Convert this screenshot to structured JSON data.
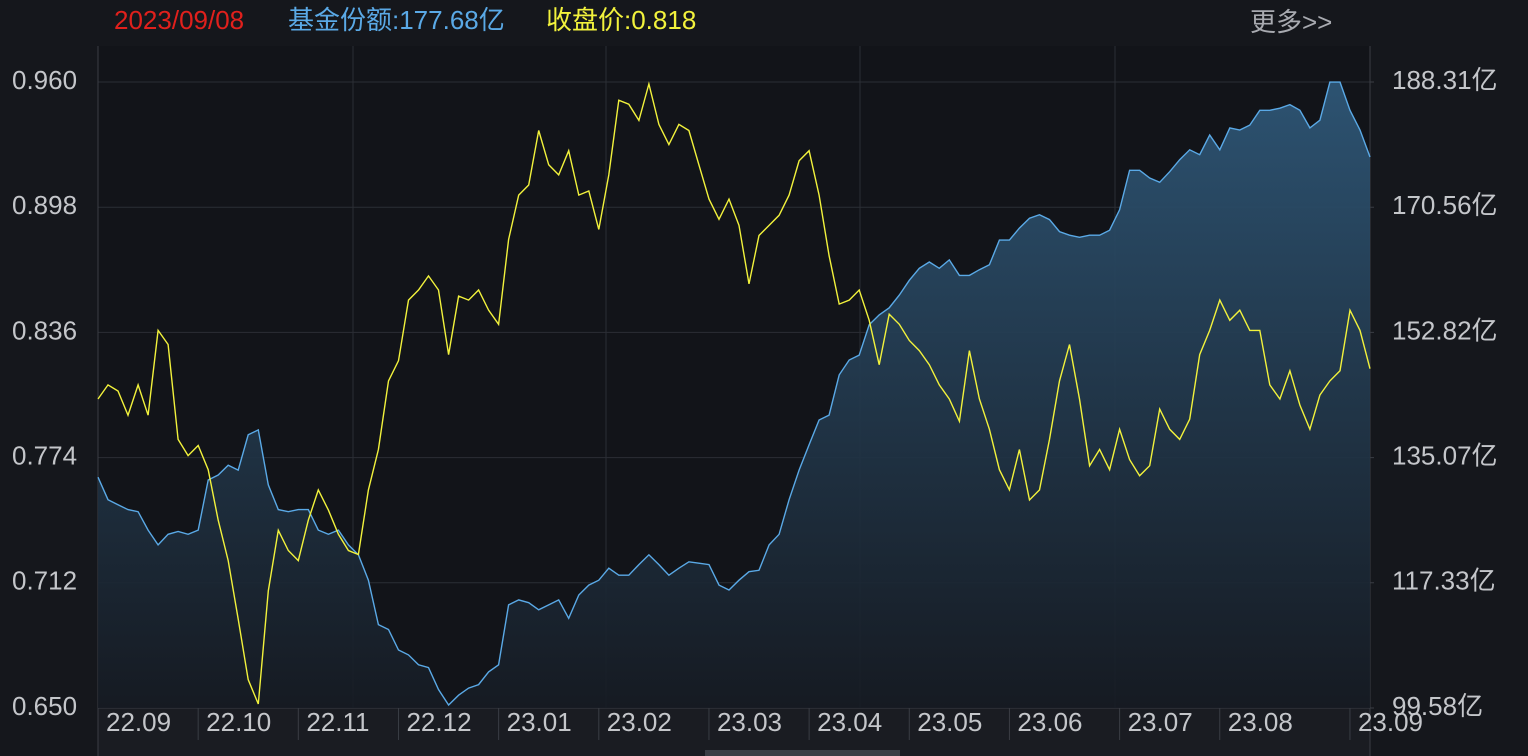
{
  "chart_data": {
    "type": "line",
    "date": "2023/09/08",
    "header_share": "基金份额:177.68亿",
    "header_price": "收盘价:0.818",
    "more": "更多>>",
    "categories": [
      "22.09",
      null,
      null,
      null,
      null,
      null,
      null,
      null,
      null,
      null,
      "22.10",
      null,
      null,
      null,
      null,
      null,
      null,
      null,
      null,
      null,
      "22.11",
      null,
      null,
      null,
      null,
      null,
      null,
      null,
      null,
      null,
      "22.12",
      null,
      null,
      null,
      null,
      null,
      null,
      null,
      null,
      null,
      "23.01",
      null,
      null,
      null,
      null,
      null,
      null,
      null,
      null,
      null,
      "23.02",
      null,
      null,
      null,
      null,
      null,
      null,
      null,
      null,
      null,
      null,
      "23.03",
      null,
      null,
      null,
      null,
      null,
      null,
      null,
      null,
      null,
      "23.04",
      null,
      null,
      null,
      null,
      null,
      null,
      null,
      null,
      null,
      "23.05",
      null,
      null,
      null,
      null,
      null,
      null,
      null,
      null,
      null,
      "23.06",
      null,
      null,
      null,
      null,
      null,
      null,
      null,
      null,
      null,
      null,
      "23.07",
      null,
      null,
      null,
      null,
      null,
      null,
      null,
      null,
      null,
      "23.08",
      null,
      null,
      null,
      null,
      null,
      null,
      null,
      null,
      null,
      null,
      null,
      null,
      "23.09",
      null,
      null
    ],
    "series": [
      {
        "color": "#5aa9e6",
        "axis": "y2",
        "fill": true,
        "values": [
          132.3,
          129.1,
          128.4,
          127.7,
          127.4,
          124.8,
          122.7,
          124.2,
          124.6,
          124.2,
          124.8,
          131.9,
          132.6,
          134.0,
          133.3,
          138.3,
          139.0,
          131.2,
          127.7,
          127.4,
          127.7,
          127.7,
          124.8,
          124.2,
          124.8,
          122.7,
          121.3,
          117.7,
          111.4,
          110.7,
          107.8,
          107.1,
          105.7,
          105.3,
          102.2,
          100.0,
          101.4,
          102.4,
          102.9,
          104.7,
          105.7,
          114.2,
          114.9,
          114.5,
          113.5,
          114.2,
          114.9,
          112.3,
          115.6,
          117.0,
          117.7,
          119.4,
          118.4,
          118.4,
          119.9,
          121.3,
          119.9,
          118.4,
          119.4,
          120.3,
          120.1,
          119.9,
          117.0,
          116.3,
          117.7,
          118.9,
          119.1,
          122.7,
          124.2,
          129.1,
          133.3,
          136.9,
          140.4,
          141.1,
          146.8,
          148.9,
          149.6,
          153.9,
          155.3,
          156.3,
          158.1,
          160.2,
          161.9,
          162.8,
          161.9,
          163.1,
          160.9,
          160.9,
          161.7,
          162.4,
          165.9,
          165.9,
          167.6,
          169.0,
          169.5,
          168.8,
          167.1,
          166.6,
          166.3,
          166.6,
          166.6,
          167.3,
          170.2,
          175.8,
          175.8,
          174.7,
          174.1,
          175.6,
          177.3,
          178.7,
          178.0,
          180.8,
          178.7,
          181.8,
          181.5,
          182.2,
          184.3,
          184.3,
          184.6,
          185.1,
          184.3,
          181.8,
          182.9,
          188.3,
          188.3,
          184.3,
          181.5,
          177.68
        ]
      },
      {
        "color": "#f2f23c",
        "axis": "y",
        "values": [
          0.803,
          0.81,
          0.807,
          0.795,
          0.81,
          0.795,
          0.837,
          0.83,
          0.783,
          0.775,
          0.78,
          0.768,
          0.743,
          0.723,
          0.694,
          0.664,
          0.652,
          0.708,
          0.738,
          0.728,
          0.723,
          0.743,
          0.758,
          0.748,
          0.736,
          0.728,
          0.726,
          0.758,
          0.778,
          0.812,
          0.822,
          0.852,
          0.857,
          0.864,
          0.857,
          0.825,
          0.854,
          0.852,
          0.857,
          0.847,
          0.84,
          0.882,
          0.904,
          0.909,
          0.936,
          0.919,
          0.914,
          0.926,
          0.904,
          0.906,
          0.887,
          0.914,
          0.951,
          0.949,
          0.941,
          0.959,
          0.939,
          0.929,
          0.939,
          0.936,
          0.919,
          0.902,
          0.892,
          0.902,
          0.889,
          0.86,
          0.884,
          0.889,
          0.894,
          0.904,
          0.921,
          0.926,
          0.904,
          0.874,
          0.85,
          0.852,
          0.857,
          0.842,
          0.82,
          0.845,
          0.84,
          0.832,
          0.827,
          0.82,
          0.81,
          0.803,
          0.792,
          0.827,
          0.803,
          0.788,
          0.768,
          0.758,
          0.778,
          0.753,
          0.758,
          0.783,
          0.812,
          0.83,
          0.803,
          0.77,
          0.778,
          0.768,
          0.788,
          0.773,
          0.765,
          0.77,
          0.798,
          0.788,
          0.783,
          0.793,
          0.825,
          0.837,
          0.852,
          0.842,
          0.847,
          0.837,
          0.837,
          0.81,
          0.803,
          0.817,
          0.8,
          0.788,
          0.805,
          0.812,
          0.817,
          0.847,
          0.837,
          0.818
        ]
      }
    ],
    "ylim": [
      0.65,
      0.96
    ],
    "yticks": [
      {
        "value": 0.65,
        "label": "0.650"
      },
      {
        "value": 0.712,
        "label": "0.712"
      },
      {
        "value": 0.774,
        "label": "0.774"
      },
      {
        "value": 0.836,
        "label": "0.836"
      },
      {
        "value": 0.898,
        "label": "0.898"
      },
      {
        "value": 0.96,
        "label": "0.960"
      }
    ],
    "y2lim": [
      99.58,
      188.31
    ],
    "y2ticks": [
      {
        "value": 99.58,
        "label": "99.58亿"
      },
      {
        "value": 117.33,
        "label": "117.33亿"
      },
      {
        "value": 135.07,
        "label": "135.07亿"
      },
      {
        "value": 152.82,
        "label": "152.82亿"
      },
      {
        "value": 170.56,
        "label": "170.56亿"
      },
      {
        "value": 188.31,
        "label": "188.31亿"
      }
    ],
    "grid": true
  }
}
